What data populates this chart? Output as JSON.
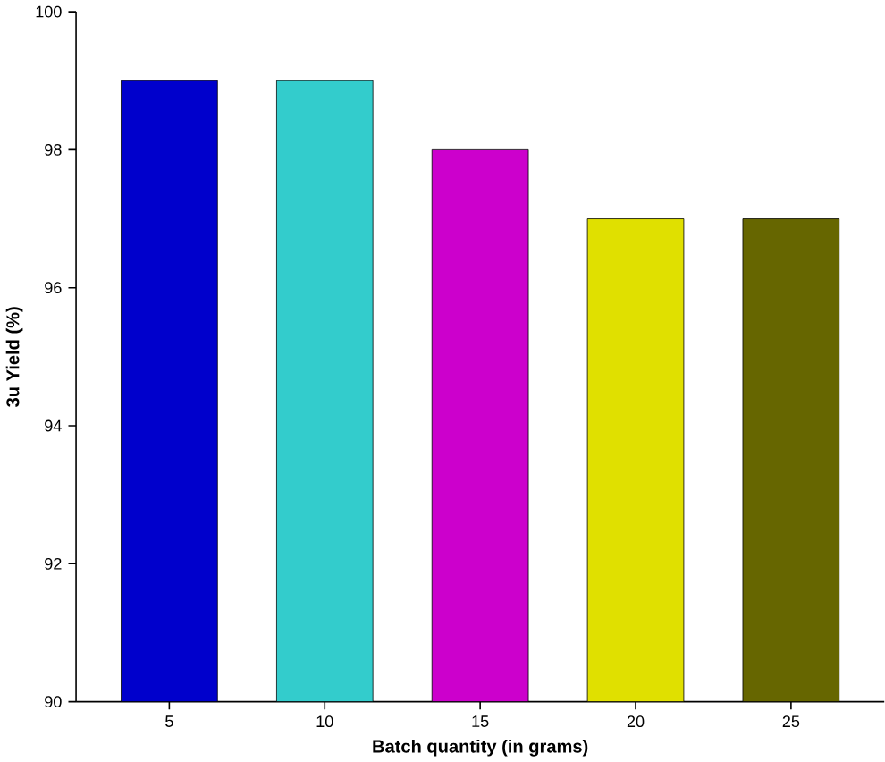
{
  "chart_data": {
    "type": "bar",
    "xlabel": "Batch quantity (in grams)",
    "ylabel": "3u Yield (%)",
    "categories": [
      "5",
      "10",
      "15",
      "20",
      "25"
    ],
    "values": [
      99,
      99,
      98,
      97,
      97
    ],
    "colors": [
      "#0000cc",
      "#33cccc",
      "#cc00cc",
      "#e0e000",
      "#666600"
    ],
    "ylim": [
      90,
      100
    ],
    "yticks": [
      90,
      92,
      94,
      96,
      98,
      100
    ]
  }
}
